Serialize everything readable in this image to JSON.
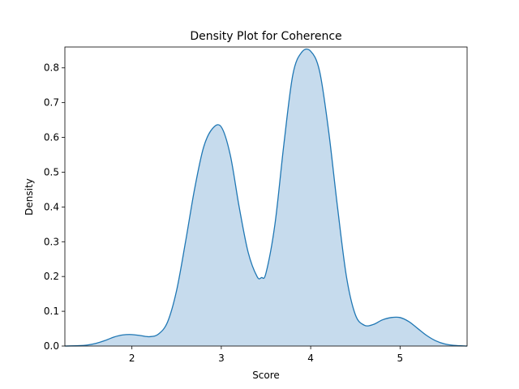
{
  "chart_data": {
    "type": "area",
    "title": "Density Plot for Coherence",
    "xlabel": "Score",
    "ylabel": "Density",
    "xlim": [
      1.25,
      5.75
    ],
    "ylim": [
      0,
      0.86
    ],
    "xticks": [
      2,
      3,
      4,
      5
    ],
    "yticks": [
      0.0,
      0.1,
      0.2,
      0.3,
      0.4,
      0.5,
      0.6,
      0.7,
      0.8
    ],
    "grid": false,
    "legend": "none",
    "series": [
      {
        "color": "#1f77b4",
        "fill_color": "#c6dbed",
        "x": [
          1.25,
          1.4,
          1.5,
          1.6,
          1.7,
          1.8,
          1.9,
          2.0,
          2.1,
          2.2,
          2.3,
          2.4,
          2.5,
          2.6,
          2.7,
          2.8,
          2.9,
          3.0,
          3.1,
          3.2,
          3.3,
          3.4,
          3.45,
          3.5,
          3.6,
          3.7,
          3.8,
          3.9,
          4.0,
          4.1,
          4.2,
          4.3,
          4.4,
          4.5,
          4.6,
          4.7,
          4.8,
          4.9,
          5.0,
          5.1,
          5.2,
          5.3,
          5.4,
          5.5,
          5.6,
          5.75
        ],
        "y": [
          0.0,
          0.001,
          0.003,
          0.008,
          0.016,
          0.026,
          0.032,
          0.033,
          0.03,
          0.027,
          0.035,
          0.07,
          0.16,
          0.3,
          0.45,
          0.57,
          0.625,
          0.63,
          0.55,
          0.4,
          0.27,
          0.2,
          0.197,
          0.21,
          0.35,
          0.58,
          0.78,
          0.845,
          0.848,
          0.79,
          0.62,
          0.4,
          0.2,
          0.09,
          0.06,
          0.062,
          0.075,
          0.082,
          0.082,
          0.07,
          0.05,
          0.03,
          0.015,
          0.006,
          0.002,
          0.0
        ]
      }
    ]
  }
}
